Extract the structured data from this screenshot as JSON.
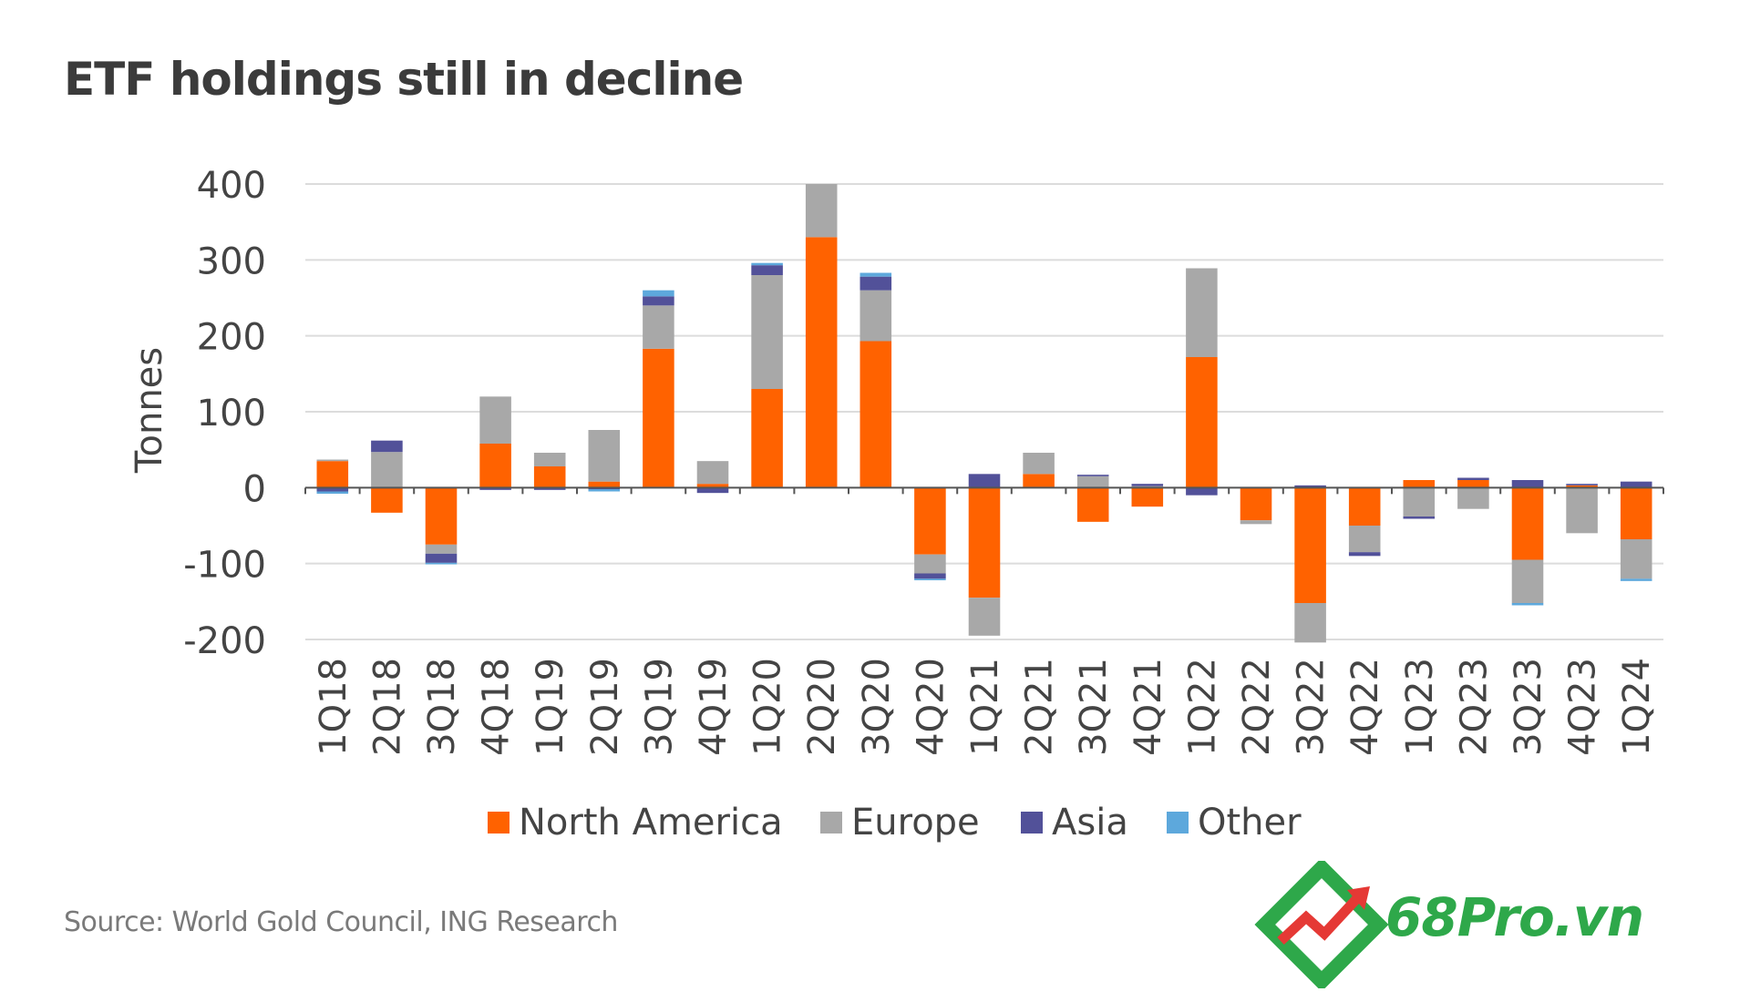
{
  "chart_data": {
    "type": "bar",
    "stacked": true,
    "title": "ETF holdings still in decline",
    "ylabel": "Tonnes",
    "xlabel": "",
    "ylim": [
      -200,
      400
    ],
    "yticks": [
      400,
      300,
      200,
      100,
      0,
      -100,
      -200
    ],
    "grid": true,
    "legend_position": "bottom",
    "categories": [
      "1Q18",
      "2Q18",
      "3Q18",
      "4Q18",
      "1Q19",
      "2Q19",
      "3Q19",
      "4Q19",
      "1Q20",
      "2Q20",
      "3Q20",
      "4Q20",
      "1Q21",
      "2Q21",
      "3Q21",
      "4Q21",
      "1Q22",
      "2Q22",
      "3Q22",
      "4Q22",
      "1Q23",
      "2Q23",
      "3Q23",
      "4Q23",
      "1Q24"
    ],
    "series": [
      {
        "name": "North America",
        "color": "#ff6200",
        "values": [
          35,
          -33,
          -75,
          58,
          28,
          8,
          183,
          5,
          130,
          330,
          193,
          -88,
          -145,
          18,
          -45,
          -25,
          172,
          -43,
          -152,
          -50,
          10,
          10,
          -95,
          3,
          -68
        ]
      },
      {
        "name": "Europe",
        "color": "#a8a8a8",
        "values": [
          2,
          47,
          -12,
          62,
          18,
          68,
          57,
          30,
          150,
          70,
          67,
          -25,
          -50,
          28,
          15,
          2,
          117,
          -5,
          -52,
          -35,
          -38,
          -28,
          -57,
          -60,
          -52
        ]
      },
      {
        "name": "Asia",
        "color": "#525199",
        "values": [
          -5,
          15,
          -12,
          -3,
          -3,
          -2,
          12,
          -7,
          13,
          0,
          18,
          -7,
          18,
          0,
          2,
          3,
          -10,
          0,
          3,
          -5,
          -3,
          3,
          10,
          2,
          8
        ]
      },
      {
        "name": "Other",
        "color": "#5da8dc",
        "values": [
          -3,
          0,
          -2,
          0,
          0,
          -3,
          8,
          0,
          3,
          0,
          5,
          -2,
          0,
          0,
          0,
          0,
          0,
          0,
          0,
          0,
          0,
          0,
          -3,
          0,
          -3
        ]
      }
    ],
    "source": "Source: World Gold Council, ING Research"
  },
  "watermark": {
    "text": "68Pro.vn",
    "colors": {
      "green": "#2ea84a",
      "red": "#e53935"
    }
  }
}
